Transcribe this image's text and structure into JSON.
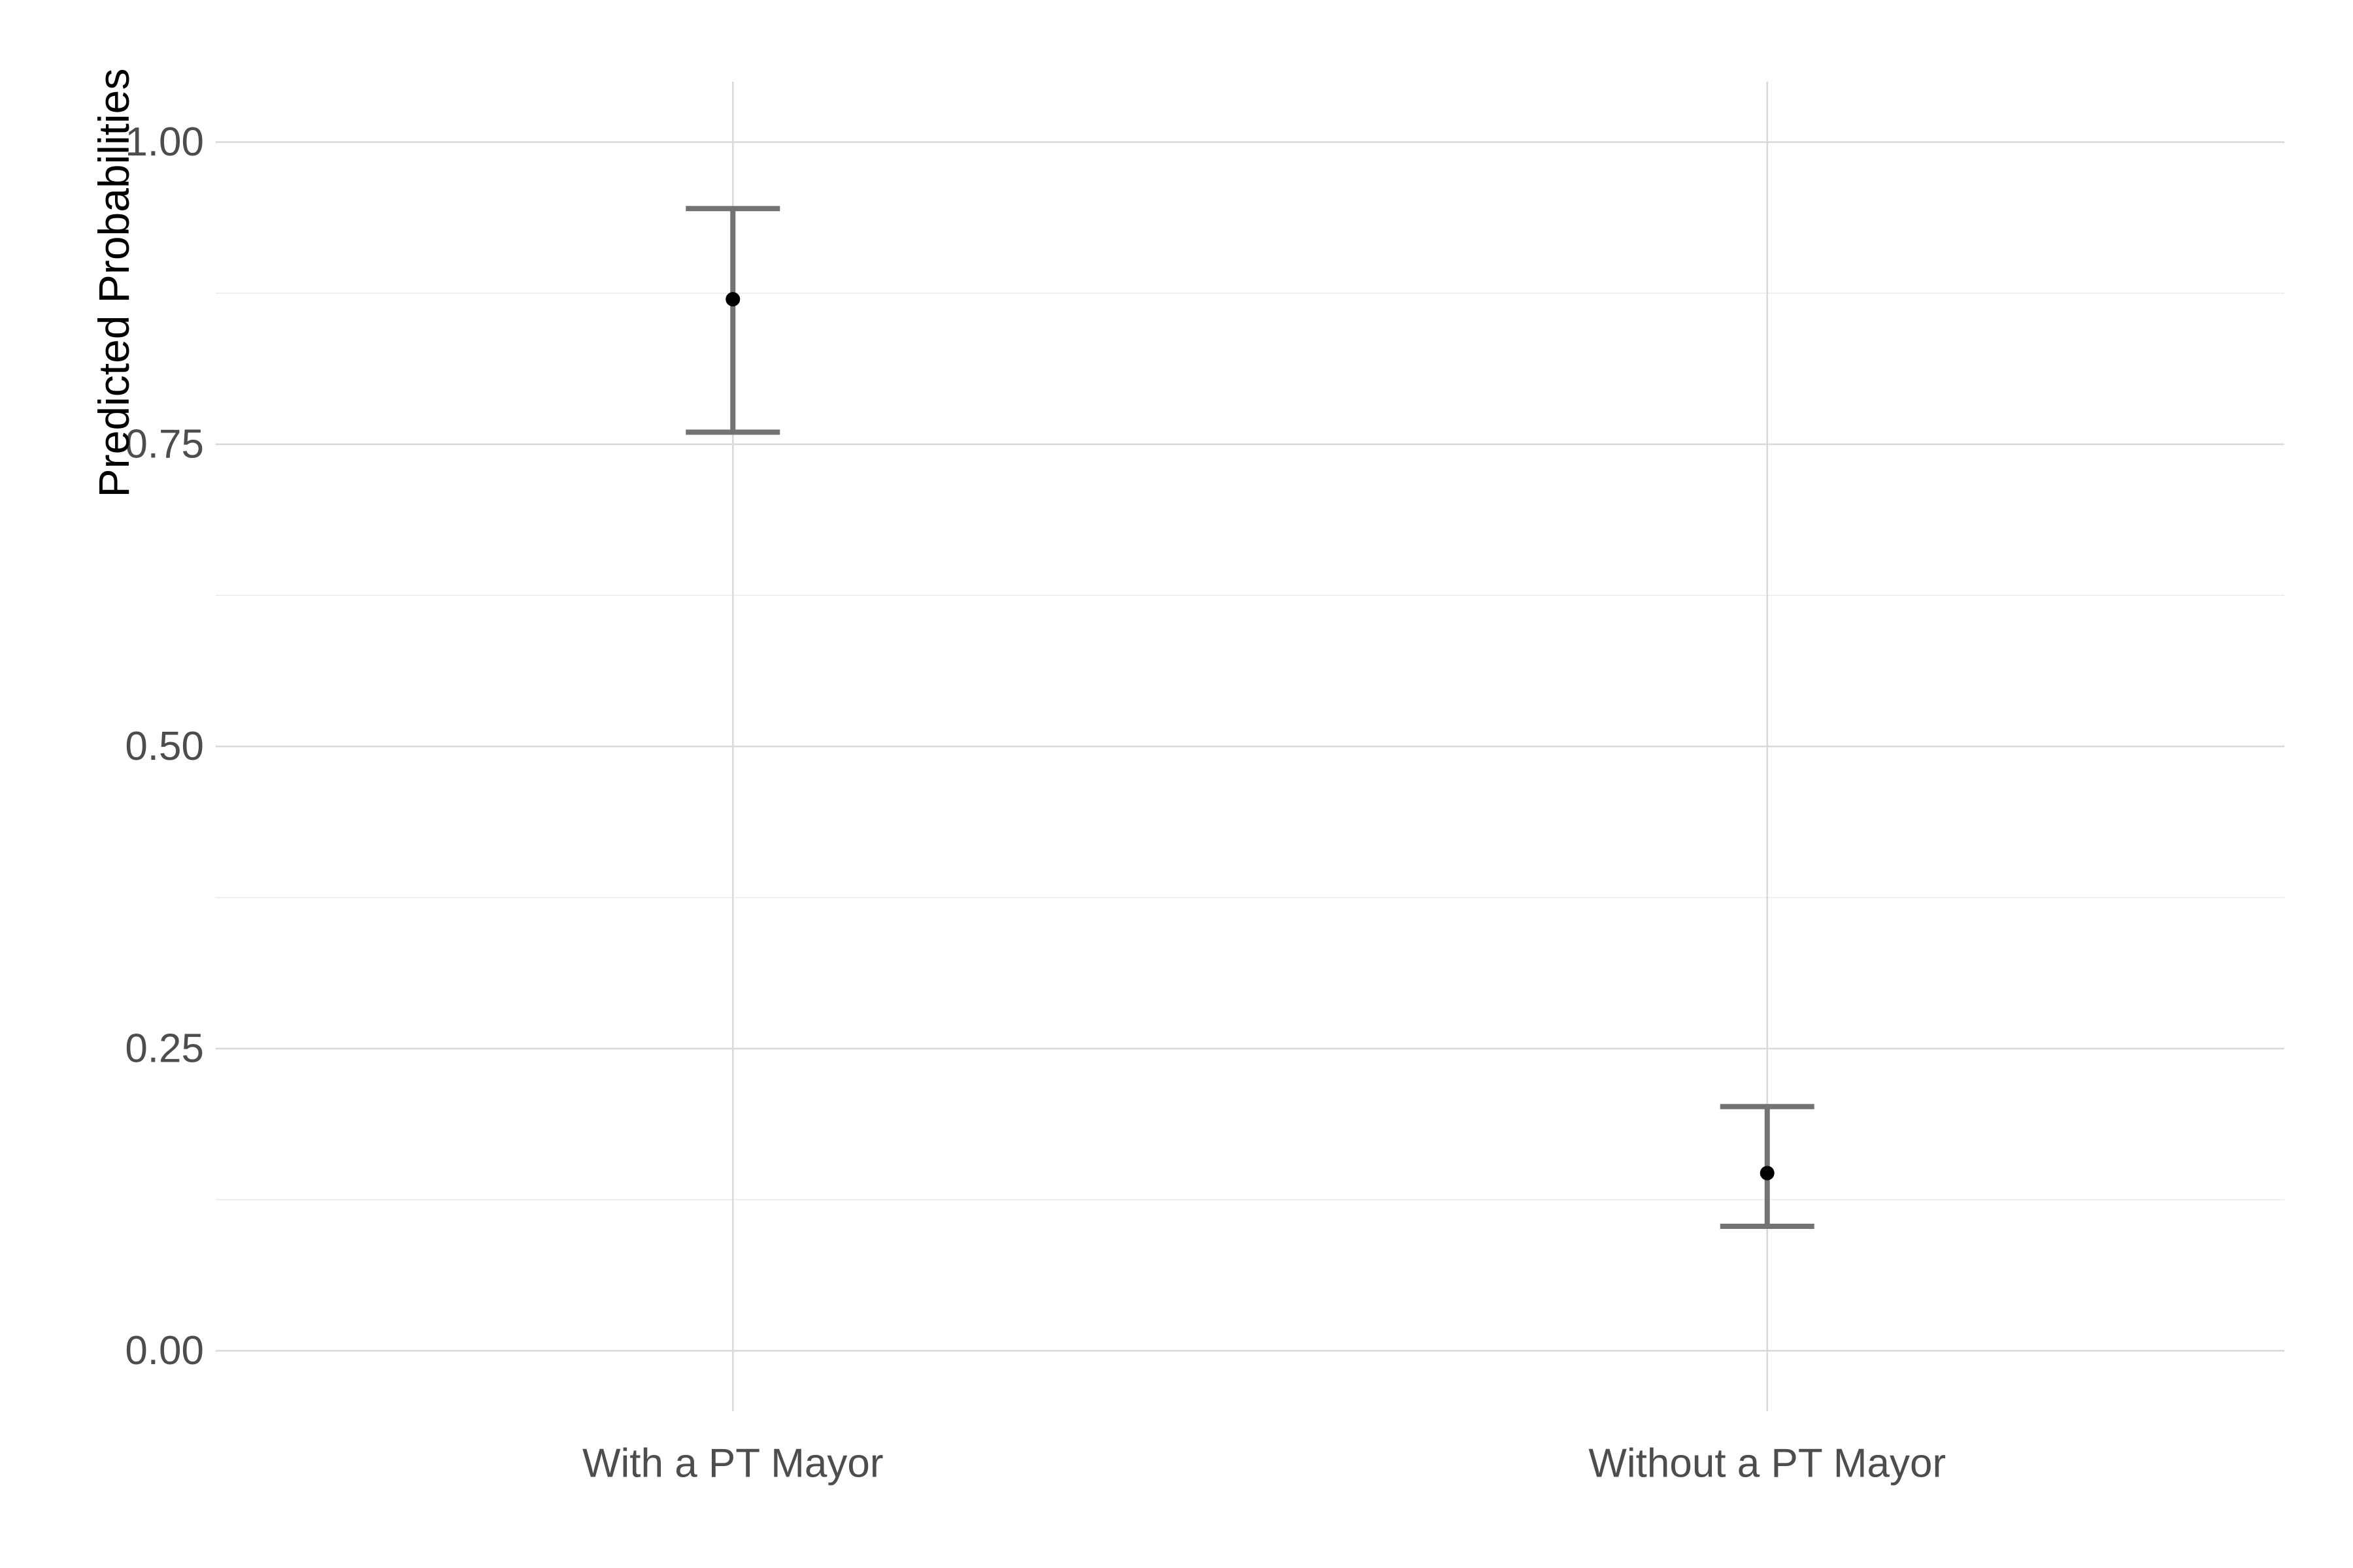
{
  "chart_data": {
    "type": "errorbar",
    "title": "",
    "xlabel": "",
    "ylabel": "Predicted Probabilities",
    "categories": [
      "With a PT Mayor",
      "Without a PT Mayor"
    ],
    "points": [
      {
        "category": "With a PT Mayor",
        "estimate": 0.87,
        "lower": 0.76,
        "upper": 0.945
      },
      {
        "category": "Without a PT Mayor",
        "estimate": 0.147,
        "lower": 0.103,
        "upper": 0.202
      }
    ],
    "ylim": [
      -0.05,
      1.05
    ],
    "yticks": [
      0.0,
      0.25,
      0.5,
      0.75,
      1.0
    ],
    "ytick_labels": [
      "0.00",
      "0.25",
      "0.50",
      "0.75",
      "1.00"
    ],
    "grid": true,
    "legend": "none",
    "colors": {
      "point": "#000000",
      "errorbar": "#737373",
      "grid_major": "#d9d9d9",
      "grid_minor": "#ebebeb",
      "tick_text": "#4d4d4d"
    }
  }
}
